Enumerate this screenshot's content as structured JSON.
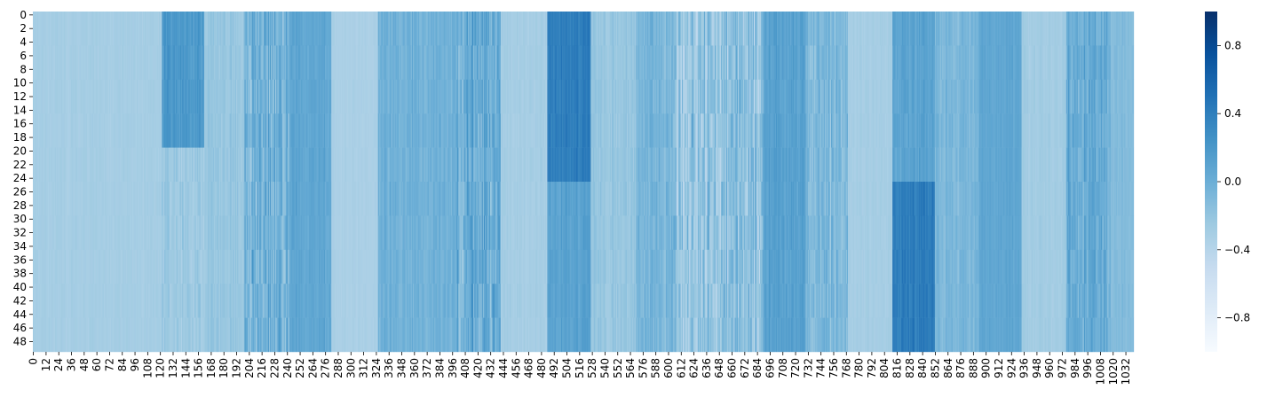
{
  "chart_data": {
    "type": "heatmap",
    "title": "",
    "xlabel": "",
    "ylabel": "",
    "rows": 50,
    "cols": 1040,
    "colormap": "Blues",
    "value_range": [
      -1.0,
      1.0
    ],
    "x_tick_labels": [
      "0",
      "12",
      "24",
      "36",
      "48",
      "60",
      "72",
      "84",
      "96",
      "108",
      "120",
      "132",
      "144",
      "156",
      "168",
      "180",
      "192",
      "204",
      "216",
      "228",
      "240",
      "252",
      "264",
      "276",
      "288",
      "300",
      "312",
      "324",
      "336",
      "348",
      "360",
      "372",
      "384",
      "396",
      "408",
      "420",
      "432",
      "444",
      "456",
      "468",
      "480",
      "492",
      "504",
      "516",
      "528",
      "540",
      "552",
      "564",
      "576",
      "588",
      "600",
      "612",
      "624",
      "636",
      "648",
      "660",
      "672",
      "684",
      "696",
      "708",
      "720",
      "732",
      "744",
      "756",
      "768",
      "780",
      "792",
      "804",
      "816",
      "828",
      "840",
      "852",
      "864",
      "876",
      "888",
      "900",
      "912",
      "924",
      "936",
      "948",
      "960",
      "972",
      "984",
      "996",
      "1008",
      "1020",
      "1032"
    ],
    "y_tick_labels": [
      "0",
      "2",
      "4",
      "6",
      "8",
      "10",
      "12",
      "14",
      "16",
      "18",
      "20",
      "22",
      "24",
      "26",
      "28",
      "30",
      "32",
      "34",
      "36",
      "38",
      "40",
      "42",
      "44",
      "46",
      "48"
    ],
    "colorbar_ticks": [
      {
        "value": 0.8,
        "label": "0.8"
      },
      {
        "value": 0.4,
        "label": "0.4"
      },
      {
        "value": 0.0,
        "label": "0.0"
      },
      {
        "value": -0.4,
        "label": "−0.4"
      },
      {
        "value": -0.8,
        "label": "−0.8"
      }
    ],
    "column_bands": [
      {
        "start": 0,
        "end": 122,
        "value": -0.3,
        "noise": 0.04
      },
      {
        "start": 122,
        "end": 162,
        "value": 0.2,
        "noise": 0.12,
        "lower_value": -0.25,
        "transition_row": 18
      },
      {
        "start": 162,
        "end": 200,
        "value": -0.22,
        "noise": 0.08
      },
      {
        "start": 200,
        "end": 242,
        "value": -0.05,
        "noise": 0.28
      },
      {
        "start": 242,
        "end": 282,
        "value": 0.08,
        "noise": 0.08
      },
      {
        "start": 282,
        "end": 326,
        "value": -0.33,
        "noise": 0.03
      },
      {
        "start": 326,
        "end": 400,
        "value": -0.02,
        "noise": 0.1
      },
      {
        "start": 400,
        "end": 442,
        "value": 0.0,
        "noise": 0.3
      },
      {
        "start": 442,
        "end": 486,
        "value": -0.3,
        "noise": 0.05
      },
      {
        "start": 486,
        "end": 527,
        "value": 0.42,
        "noise": 0.08,
        "lower_value": 0.12,
        "transition_row": 24
      },
      {
        "start": 527,
        "end": 570,
        "value": -0.22,
        "noise": 0.08
      },
      {
        "start": 570,
        "end": 605,
        "value": -0.05,
        "noise": 0.15
      },
      {
        "start": 605,
        "end": 690,
        "value": -0.2,
        "noise": 0.32
      },
      {
        "start": 690,
        "end": 730,
        "value": 0.12,
        "noise": 0.1
      },
      {
        "start": 730,
        "end": 770,
        "value": -0.1,
        "noise": 0.18
      },
      {
        "start": 770,
        "end": 812,
        "value": -0.3,
        "noise": 0.04
      },
      {
        "start": 812,
        "end": 852,
        "value": 0.1,
        "noise": 0.1,
        "lower_value": 0.42,
        "transition_row": 24
      },
      {
        "start": 852,
        "end": 894,
        "value": -0.08,
        "noise": 0.1
      },
      {
        "start": 894,
        "end": 934,
        "value": 0.08,
        "noise": 0.05
      },
      {
        "start": 934,
        "end": 976,
        "value": -0.28,
        "noise": 0.05
      },
      {
        "start": 976,
        "end": 1018,
        "value": 0.02,
        "noise": 0.2
      },
      {
        "start": 1018,
        "end": 1040,
        "value": -0.12,
        "noise": 0.06
      }
    ]
  }
}
